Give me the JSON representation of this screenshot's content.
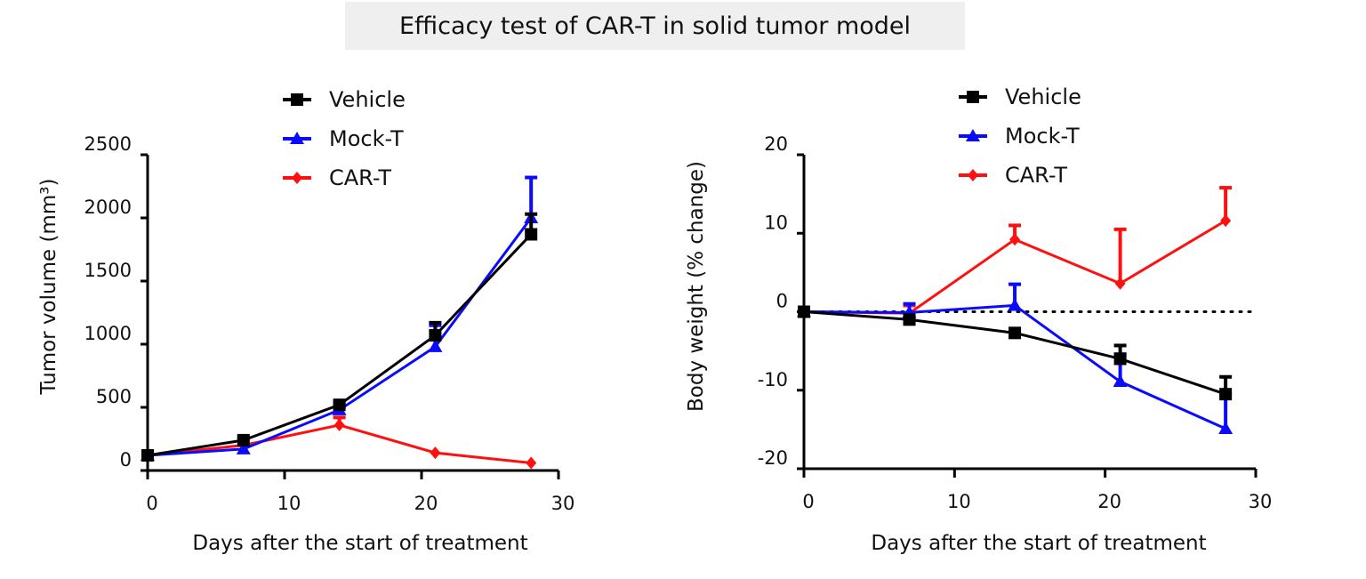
{
  "title": "Efficacy test of CAR-T in solid tumor model",
  "colors": {
    "Vehicle": "#000000",
    "Mock-T": "#0a0aff",
    "CAR-T": "#ff1010"
  },
  "chart_data": [
    {
      "type": "line",
      "xlabel": "Days after the start of treatment",
      "ylabel": "Tumor volume (mm³)",
      "xlim": [
        0,
        30
      ],
      "ylim": [
        0,
        2500
      ],
      "xticks": [
        "0",
        "10",
        "20",
        "30"
      ],
      "yticks": [
        "0",
        "500",
        "1000",
        "1500",
        "2000",
        "2500"
      ],
      "legend": "top",
      "x": [
        0,
        7,
        14,
        21,
        28
      ],
      "series": [
        {
          "name": "Vehicle",
          "marker": "square",
          "values": [
            120,
            240,
            520,
            1070,
            1870
          ],
          "error_upper": [
            130,
            260,
            540,
            1170,
            2030
          ]
        },
        {
          "name": "Mock-T",
          "marker": "triangle",
          "values": [
            120,
            170,
            480,
            980,
            2000
          ],
          "error_upper": [
            130,
            180,
            500,
            1150,
            2320
          ]
        },
        {
          "name": "CAR-T",
          "marker": "diamond",
          "values": [
            120,
            200,
            360,
            140,
            60
          ],
          "error_upper": [
            130,
            210,
            420,
            150,
            65
          ]
        }
      ]
    },
    {
      "type": "line",
      "xlabel": "Days after the start of treatment",
      "ylabel": "Body weight (% change)",
      "xlim": [
        0,
        30
      ],
      "ylim": [
        -20,
        20
      ],
      "xticks": [
        "0",
        "10",
        "20",
        "30"
      ],
      "yticks": [
        "-20",
        "-10",
        "0",
        "10",
        "20"
      ],
      "reference_line": 0,
      "legend": "top",
      "x": [
        0,
        7,
        14,
        21,
        28
      ],
      "series": [
        {
          "name": "Vehicle",
          "marker": "square",
          "values": [
            0,
            -1.0,
            -2.7,
            -6.0,
            -10.5
          ],
          "error_upper": [
            0,
            -0.8,
            -2.5,
            -4.3,
            -8.3
          ]
        },
        {
          "name": "Mock-T",
          "marker": "triangle",
          "values": [
            0,
            -0.1,
            0.8,
            -8.9,
            -14.9
          ],
          "error_upper": [
            0,
            1.0,
            3.5,
            -5.4,
            -10.5
          ]
        },
        {
          "name": "CAR-T",
          "marker": "diamond",
          "values": [
            0,
            -0.2,
            9.2,
            3.6,
            11.6
          ],
          "error_upper": [
            0,
            0.8,
            11.0,
            10.5,
            15.8
          ]
        }
      ]
    }
  ]
}
